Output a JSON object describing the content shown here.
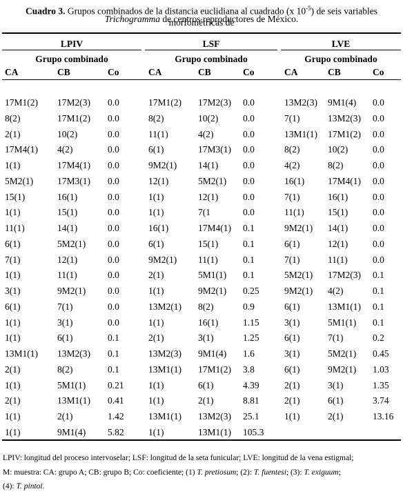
{
  "caption": {
    "label": "Cuadro 3.",
    "text1": "Grupos combinados de la distancia euclidiana al cuadrado (x 10",
    "sup": "-5",
    "text2": ") de seis variables morfométricas de",
    "italic": "Trichogramma",
    "text3": "de centros reproductores de México."
  },
  "table": {
    "groups": [
      {
        "name": "LPIV",
        "sub": "Grupo combinado",
        "cols": [
          "CA",
          "CB",
          "Co"
        ]
      },
      {
        "name": "LSF",
        "sub": "Grupo combinado",
        "cols": [
          "CA",
          "CB",
          "Co"
        ]
      },
      {
        "name": "LVE",
        "sub": "Grupo combinado",
        "cols": [
          "CA",
          "CB",
          "Co"
        ]
      }
    ],
    "rows": [
      [
        "17M1(2)",
        "17M2(3)",
        "0.0",
        "17M1(2)",
        "17M2(3)",
        "0.0",
        "13M2(3)",
        "9M1(4)",
        "0.0"
      ],
      [
        "8(2)",
        "17M1(2)",
        "0.0",
        "8(2)",
        "10(2)",
        "0.0",
        "7(1)",
        "13M2(3)",
        "0.0"
      ],
      [
        "2(1)",
        "10(2)",
        "0.0",
        "11(1)",
        "4(2)",
        "0.0",
        "13M1(1)",
        "17M1(2)",
        "0.0"
      ],
      [
        "17M4(1)",
        "4(2)",
        "0.0",
        "6(1)",
        "17M3(1)",
        "0.0",
        "8(2)",
        "10(2)",
        "0.0"
      ],
      [
        "1(1)",
        "17M4(1)",
        "0.0",
        "9M2(1)",
        "14(1)",
        "0.0",
        "4(2)",
        "8(2)",
        "0.0"
      ],
      [
        "5M2(1)",
        "17M3(1)",
        "0.0",
        "12(1)",
        "5M2(1)",
        "0.0",
        "16(1)",
        "17M4(1)",
        "0.0"
      ],
      [
        "15(1)",
        "16(1)",
        "0.0",
        "1(1)",
        "12(1)",
        "0.0",
        "7(1)",
        "16(1)",
        "0.0"
      ],
      [
        "1(1)",
        "15(1)",
        "0.0",
        "1(1)",
        "7(1",
        "0.0",
        "11(1)",
        "15(1)",
        "0.0"
      ],
      [
        "11(1)",
        "14(1)",
        "0.0",
        "16(1)",
        "17M4(1)",
        "0.1",
        "9M2(1)",
        "14(1)",
        "0.0"
      ],
      [
        "6(1)",
        "5M2(1)",
        "0.0",
        "6(1)",
        "15(1)",
        "0.1",
        "6(1)",
        "12(1)",
        "0.0"
      ],
      [
        "7(1)",
        "12(1)",
        "0.0",
        "9M2(1)",
        "11(1)",
        "0.1",
        "7(1)",
        "11(1)",
        "0.0"
      ],
      [
        "1(1)",
        "11(1)",
        "0.0",
        "2(1)",
        "5M1(1)",
        "0.1",
        "5M2(1)",
        "17M2(3)",
        "0.1"
      ],
      [
        "3(1)",
        "9M2(1)",
        "0.0",
        "1(1)",
        "9M2(1)",
        "0.25",
        "9M2(1)",
        "4(2)",
        "0.1"
      ],
      [
        "6(1)",
        "7(1)",
        "0.0",
        "13M2(1)",
        "8(2)",
        "0.9",
        "6(1)",
        "13M1(1)",
        "0.1"
      ],
      [
        "1(1)",
        "3(1)",
        "0.0",
        "1(1)",
        "16(1)",
        "1.15",
        "3(1)",
        "5M1(1)",
        "0.1"
      ],
      [
        "1(1)",
        "6(1)",
        "0.1",
        "2(1)",
        "3(1)",
        "1.25",
        "6(1)",
        "7(1)",
        "0.2"
      ],
      [
        "13M1(1)",
        "13M2(3)",
        "0.1",
        "13M2(3)",
        "9M1(4)",
        "1.6",
        "3(1)",
        "5M2(1)",
        "0.45"
      ],
      [
        "2(1)",
        "8(2)",
        "0.1",
        "13M1(1)",
        "17M1(2)",
        "3.8",
        "6(1)",
        "9M2(1)",
        "1.03"
      ],
      [
        "1(1)",
        "5M1(1)",
        "0.21",
        "1(1)",
        "6(1)",
        "4.39",
        "2(1)",
        "3(1)",
        "1.35"
      ],
      [
        "2(1)",
        "13M1(1)",
        "0.41",
        "1(1)",
        "2(1)",
        "8.81",
        "2(1)",
        "6(1)",
        "3.74"
      ],
      [
        "1(1)",
        "2(1)",
        "1.42",
        "13M1(1)",
        "13M2(3)",
        "25.1",
        "1(1)",
        "2(1)",
        "13.16"
      ],
      [
        "1(1)",
        "9M1(4)",
        "5.82",
        "1(1)",
        "13M1(1)",
        "105.3"
      ]
    ]
  },
  "footnote": {
    "line1": "LPIV: longitud del proceso intervoselar; LSF: longitud de la seta funicular; LVE: longitud de la vena estigmal;",
    "line2": "M: muestra: CA: grupo A; CB: grupo B; Co: coeficiente; (1)",
    "sp1": "T. pretiosum",
    "t2": "; (2):",
    "sp2": "T. fuentesi",
    "t3": "; (3):",
    "sp3": "T. exiguum",
    "t4": ";",
    "t5": "(4):",
    "sp4": "T. pintoi",
    "t6": "."
  }
}
